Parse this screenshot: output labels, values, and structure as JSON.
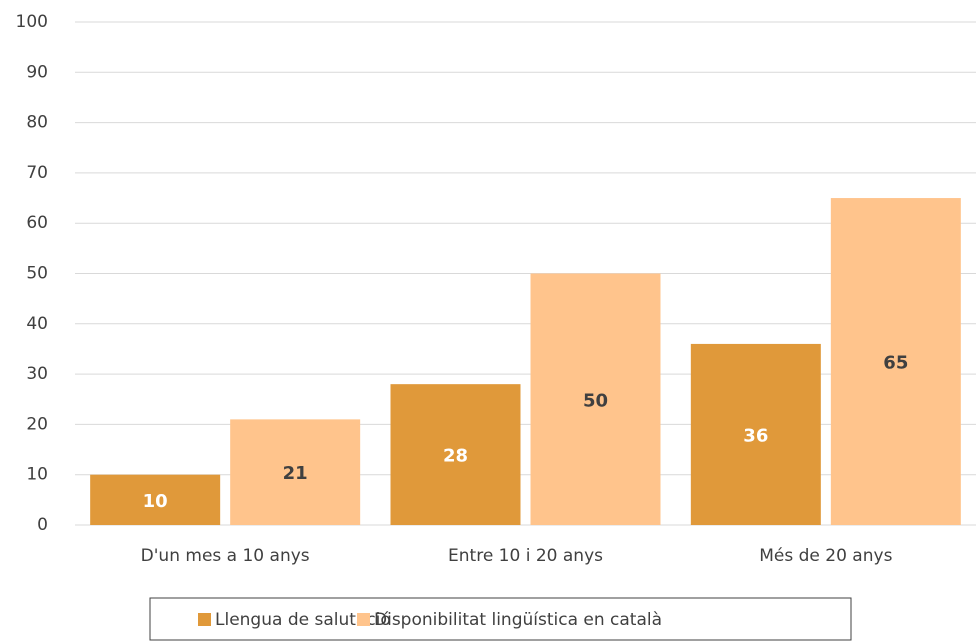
{
  "chart_data": {
    "type": "bar",
    "categories": [
      "D'un mes a 10 anys",
      "Entre 10 i 20 anys",
      "Més de 20 anys"
    ],
    "series": [
      {
        "name": "Llengua de salutació",
        "color": "#e0993a",
        "values": [
          10,
          28,
          36
        ]
      },
      {
        "name": "Disponibilitat lingüística en català",
        "color": "#ffc48c",
        "values": [
          21,
          50,
          65
        ]
      }
    ],
    "ylim": [
      0,
      100
    ],
    "yticks": [
      0,
      10,
      20,
      30,
      40,
      50,
      60,
      70,
      80,
      90,
      100
    ],
    "grid": true,
    "legend": "bottom",
    "data_labels": true
  }
}
